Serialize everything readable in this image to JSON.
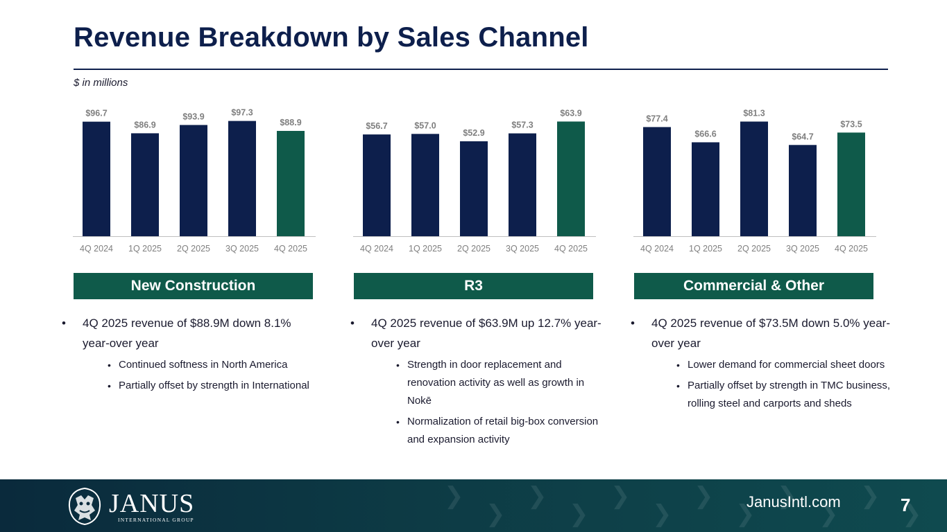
{
  "title": "Revenue Breakdown by Sales Channel",
  "units": "$ in millions",
  "colors": {
    "navy": "#0d1f4c",
    "green": "#0f5a4a",
    "axis": "#bfbfbf",
    "label": "#7f7f7f"
  },
  "chart_data": [
    {
      "type": "bar",
      "title": "New Construction",
      "categories": [
        "4Q 2024",
        "1Q 2025",
        "2Q 2025",
        "3Q 2025",
        "4Q 2025"
      ],
      "values": [
        96.7,
        86.9,
        93.9,
        97.3,
        88.9
      ],
      "labels": [
        "$96.7",
        "$86.9",
        "$93.9",
        "$97.3",
        "$88.9"
      ],
      "highlight_index": 4,
      "ylim": [
        0,
        100
      ]
    },
    {
      "type": "bar",
      "title": "R3",
      "categories": [
        "4Q 2024",
        "1Q 2025",
        "2Q 2025",
        "3Q 2025",
        "4Q 2025"
      ],
      "values": [
        56.7,
        57.0,
        52.9,
        57.3,
        63.9
      ],
      "labels": [
        "$56.7",
        "$57.0",
        "$52.9",
        "$57.3",
        "$63.9"
      ],
      "highlight_index": 4,
      "ylim": [
        0,
        66
      ]
    },
    {
      "type": "bar",
      "title": "Commercial & Other",
      "categories": [
        "4Q 2024",
        "1Q 2025",
        "2Q 2025",
        "3Q 2025",
        "4Q 2025"
      ],
      "values": [
        77.4,
        66.6,
        81.3,
        64.7,
        73.5
      ],
      "labels": [
        "$77.4",
        "$66.6",
        "$81.3",
        "$64.7",
        "$73.5"
      ],
      "highlight_index": 4,
      "ylim": [
        0,
        84
      ]
    }
  ],
  "sections": [
    {
      "header": "New Construction",
      "bullet": "4Q 2025 revenue of $88.9M down 8.1% year-over year",
      "sub": [
        "Continued softness in North America",
        "Partially offset by strength in International"
      ]
    },
    {
      "header": "R3",
      "bullet": "4Q 2025 revenue of $63.9M up 12.7% year-over year",
      "sub": [
        "Strength in door replacement and renovation activity as well as growth in Nokē",
        "Normalization of retail big-box conversion and expansion activity"
      ]
    },
    {
      "header": "Commercial & Other",
      "bullet": "4Q 2025 revenue of $73.5M down 5.0% year-over year",
      "sub": [
        "Lower demand for commercial sheet doors",
        "Partially offset by strength in TMC business, rolling steel and carports and sheds"
      ]
    }
  ],
  "footer": {
    "logo_name": "JANUS",
    "logo_sub": "INTERNATIONAL GROUP",
    "website": "JanusIntl.com",
    "page": "7"
  }
}
